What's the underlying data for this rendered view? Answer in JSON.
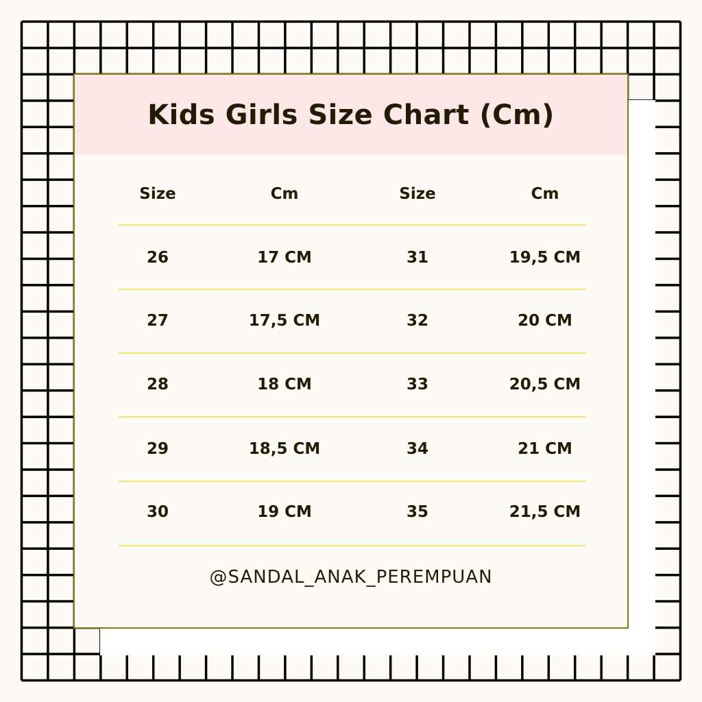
{
  "title": "Kids Girls Size Chart (Cm)",
  "headers": [
    "Size",
    "Cm",
    "Size",
    "Cm"
  ],
  "rows": [
    [
      "26",
      "17 CM",
      "31",
      "19,5 CM"
    ],
    [
      "27",
      "17,5 CM",
      "32",
      "20 CM"
    ],
    [
      "28",
      "18 CM",
      "33",
      "20,5 CM"
    ],
    [
      "29",
      "18,5 CM",
      "34",
      "21 CM"
    ],
    [
      "30",
      "19 CM",
      "35",
      "21,5 CM"
    ]
  ],
  "footer": "@SANDAL_ANAK_PEREMPUAN",
  "colors": {
    "header_bg": "#fde8e7",
    "divider": "#fbe46a",
    "border": "#8a7a12",
    "text": "#221c05",
    "grid": "#000000"
  }
}
